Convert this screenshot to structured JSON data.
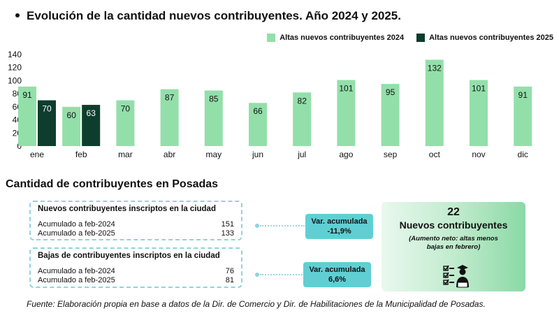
{
  "title": "Evolución de la cantidad nuevos contribuyentes. Año 2024 y 2025.",
  "chart_data": {
    "type": "bar",
    "categories": [
      "ene",
      "feb",
      "mar",
      "abr",
      "may",
      "jun",
      "jul",
      "ago",
      "sep",
      "oct",
      "nov",
      "dic"
    ],
    "series": [
      {
        "name": "Altas nuevos contribuyentes 2024",
        "color": "#93dfaa",
        "values": [
          91,
          60,
          70,
          87,
          85,
          66,
          82,
          101,
          95,
          132,
          101,
          91
        ]
      },
      {
        "name": "Altas nuevos contribuyentes 2025",
        "color": "#0d3d2d",
        "values": [
          70,
          63,
          null,
          null,
          null,
          null,
          null,
          null,
          null,
          null,
          null,
          null
        ]
      }
    ],
    "yticks": [
      "0",
      "20",
      "40",
      "60",
      "80",
      "100",
      "120",
      "140"
    ],
    "ylim": [
      0,
      140
    ],
    "grid": false,
    "legend_position": "top-right"
  },
  "section_title": "Cantidad de contribuyentes en Posadas",
  "altas": {
    "title": "Nuevos contribuyentes inscriptos en la ciudad",
    "rows": [
      {
        "label": "Acumulado a feb-2024",
        "value": "151"
      },
      {
        "label": "Acumulado a feb-2025",
        "value": "133"
      }
    ],
    "var_label": "Var. acumulada",
    "var_value": "-11,9%"
  },
  "bajas": {
    "title": "Bajas de contribuyentes inscriptos en la ciudad",
    "rows": [
      {
        "label": "Acumulado a feb-2024",
        "value": "76"
      },
      {
        "label": "Acumulado a feb-2025",
        "value": "81"
      }
    ],
    "var_label": "Var. acumulada",
    "var_value": "6,6%"
  },
  "summary": {
    "number": "22",
    "label": "Nuevos contribuyentes",
    "note": "(Aumento neto: altas menos bajas en febrero)",
    "icon": "checklist-person-icon"
  },
  "footer": "Fuente: Elaboración propia en base a datos de la Dir. de Comercio y Dir. de Habilitaciones de la Municipalidad de Posadas.",
  "colors": {
    "cyan": "#5fcfd3",
    "dashed_border": "#8fd3e0",
    "green_light": "#93dfaa",
    "green_dark": "#0d3d2d"
  }
}
